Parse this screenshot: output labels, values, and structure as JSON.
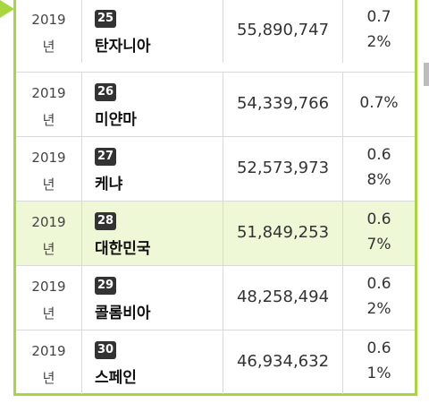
{
  "accent_color": "#a8d63e",
  "highlight_color": "#eef7d6",
  "rows": [
    {
      "year": "2019",
      "year_unit": "년",
      "rank": "25",
      "country": "탄자니아",
      "population": "55,890,747",
      "share_line1": "0.7",
      "share_line2": "2%",
      "share_single": ""
    },
    {
      "year": "2019",
      "year_unit": "년",
      "rank": "26",
      "country": "미얀마",
      "population": "54,339,766",
      "share_line1": "",
      "share_line2": "",
      "share_single": "0.7%"
    },
    {
      "year": "2019",
      "year_unit": "년",
      "rank": "27",
      "country": "케냐",
      "population": "52,573,973",
      "share_line1": "0.6",
      "share_line2": "8%",
      "share_single": ""
    },
    {
      "year": "2019",
      "year_unit": "년",
      "rank": "28",
      "country": "대한민국",
      "population": "51,849,253",
      "share_line1": "0.6",
      "share_line2": "7%",
      "share_single": ""
    },
    {
      "year": "2019",
      "year_unit": "년",
      "rank": "29",
      "country": "콜롬비아",
      "population": "48,258,494",
      "share_line1": "0.6",
      "share_line2": "2%",
      "share_single": ""
    },
    {
      "year": "2019",
      "year_unit": "년",
      "rank": "30",
      "country": "스페인",
      "population": "46,934,632",
      "share_line1": "0.6",
      "share_line2": "1%",
      "share_single": ""
    }
  ]
}
